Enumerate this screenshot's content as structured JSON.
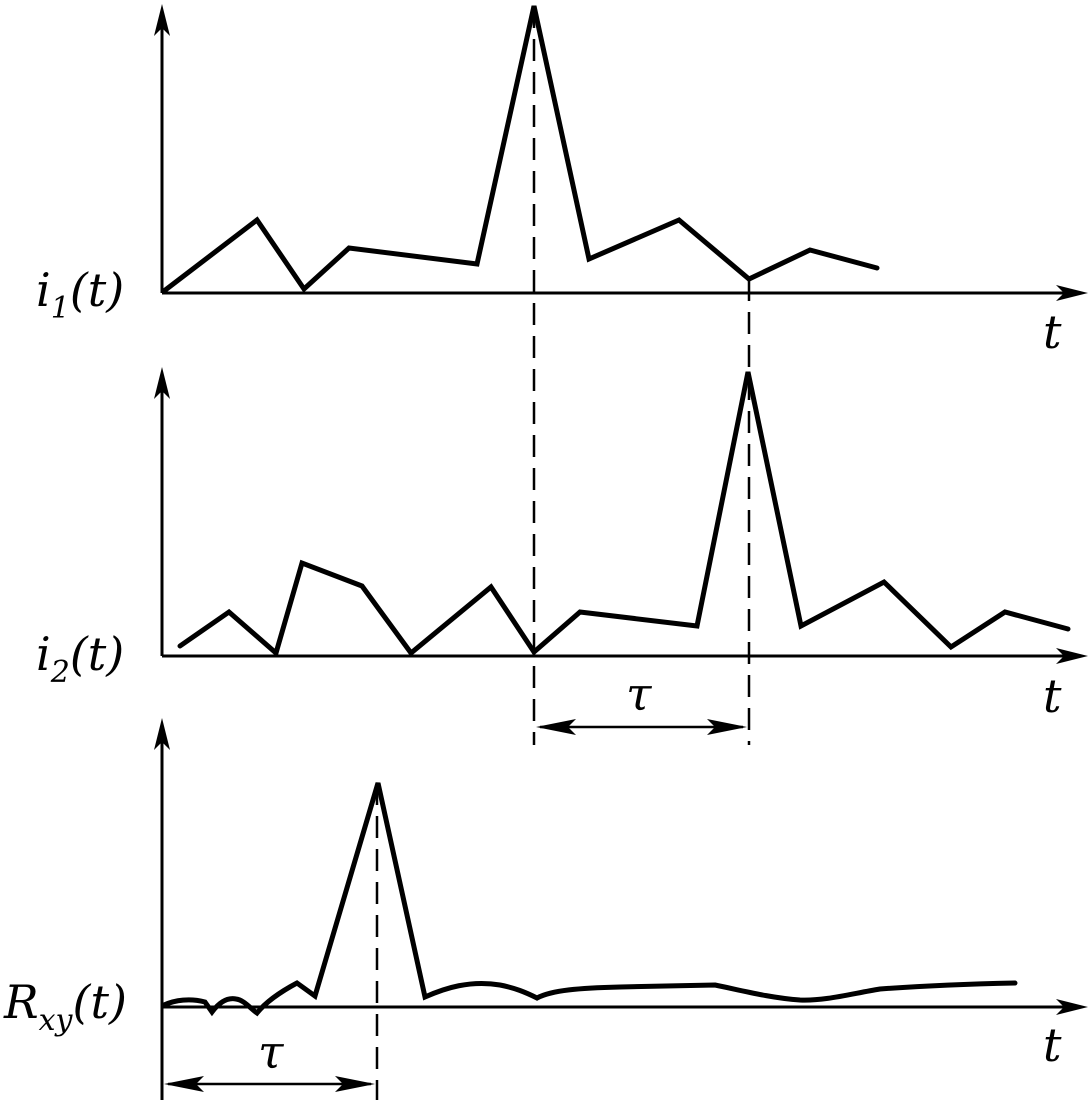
{
  "panels": [
    {
      "id": "i1",
      "var": "i",
      "sub": "1",
      "arg": "(t)",
      "x_label": "t"
    },
    {
      "id": "i2",
      "var": "i",
      "sub": "2",
      "arg": "(t)",
      "x_label": "t"
    },
    {
      "id": "rxy",
      "var": "R",
      "sub": "xy",
      "arg": "(t)",
      "x_label": "t"
    }
  ],
  "delay_label": "τ"
}
